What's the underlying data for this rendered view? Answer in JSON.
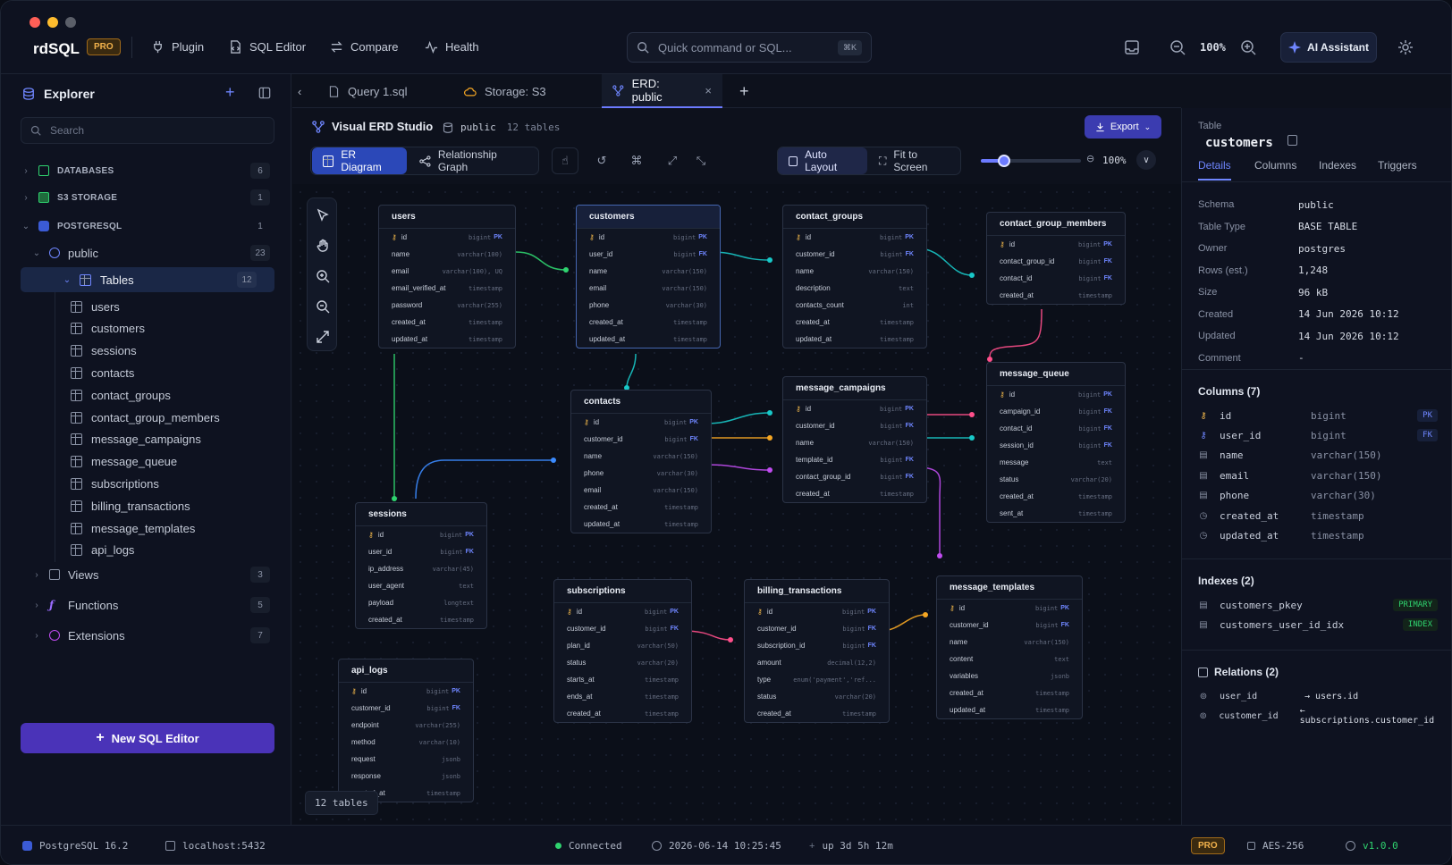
{
  "app": {
    "name": "rdSQL",
    "badge": "PRO"
  },
  "nav": {
    "plugin": "Plugin",
    "sql_editor": "SQL Editor",
    "compare": "Compare",
    "health": "Health"
  },
  "search": {
    "placeholder": "Quick command or SQL...",
    "shortcut": "⌘K"
  },
  "topright": {
    "zoom": "100%",
    "ai_assistant": "AI Assistant"
  },
  "sidebar": {
    "title": "Explorer",
    "search_placeholder": "Search",
    "groups": [
      {
        "label": "DATABASES",
        "count": "6"
      },
      {
        "label": "S3 STORAGE",
        "count": "1"
      },
      {
        "label": "POSTGRESQL",
        "count": "1"
      }
    ],
    "schema": {
      "label": "public",
      "count": "23"
    },
    "tables_node": {
      "label": "Tables",
      "count": "12"
    },
    "tables": [
      "users",
      "customers",
      "sessions",
      "contacts",
      "contact_groups",
      "contact_group_members",
      "message_campaigns",
      "message_queue",
      "subscriptions",
      "billing_transactions",
      "message_templates",
      "api_logs"
    ],
    "others": [
      {
        "label": "Views",
        "count": "3"
      },
      {
        "label": "Functions",
        "count": "5"
      },
      {
        "label": "Extensions",
        "count": "7"
      }
    ],
    "new_sql": "New SQL Editor"
  },
  "tabs": [
    {
      "label": "Query 1.sql"
    },
    {
      "label": "Storage: S3"
    },
    {
      "label": "ERD: public",
      "active": true
    }
  ],
  "toolbar": {
    "studio": "Visual ERD Studio",
    "schema": "public",
    "tables": "12 tables",
    "export": "Export",
    "er_diagram": "ER Diagram",
    "relationship_graph": "Relationship Graph",
    "auto_layout": "Auto Layout",
    "fit_to_screen": "Fit to Screen",
    "zoom": "100%",
    "zoom_level": 0.23
  },
  "erd": {
    "tables_badge": "12 tables",
    "cards": {
      "users": {
        "title": "users",
        "rows": [
          [
            "id",
            "bigint",
            "PK"
          ],
          [
            "name",
            "varchar(100)",
            ""
          ],
          [
            "email",
            "varchar(100), UQ",
            ""
          ],
          [
            "email_verified_at",
            "timestamp",
            ""
          ],
          [
            "password",
            "varchar(255)",
            ""
          ],
          [
            "created_at",
            "timestamp",
            ""
          ],
          [
            "updated_at",
            "timestamp",
            ""
          ]
        ]
      },
      "customers": {
        "title": "customers",
        "rows": [
          [
            "id",
            "bigint",
            "PK"
          ],
          [
            "user_id",
            "bigint",
            "FK"
          ],
          [
            "name",
            "varchar(150)",
            ""
          ],
          [
            "email",
            "varchar(150)",
            ""
          ],
          [
            "phone",
            "varchar(30)",
            ""
          ],
          [
            "created_at",
            "timestamp",
            ""
          ],
          [
            "updated_at",
            "timestamp",
            ""
          ]
        ]
      },
      "contact_groups": {
        "title": "contact_groups",
        "rows": [
          [
            "id",
            "bigint",
            "PK"
          ],
          [
            "customer_id",
            "bigint",
            "FK"
          ],
          [
            "name",
            "varchar(150)",
            ""
          ],
          [
            "description",
            "text",
            ""
          ],
          [
            "contacts_count",
            "int",
            ""
          ],
          [
            "created_at",
            "timestamp",
            ""
          ],
          [
            "updated_at",
            "timestamp",
            ""
          ]
        ]
      },
      "contact_group_members": {
        "title": "contact_group_members",
        "rows": [
          [
            "id",
            "bigint",
            "PK"
          ],
          [
            "contact_group_id",
            "bigint",
            "FK"
          ],
          [
            "contact_id",
            "bigint",
            "FK"
          ],
          [
            "created_at",
            "timestamp",
            ""
          ]
        ]
      },
      "contacts": {
        "title": "contacts",
        "rows": [
          [
            "id",
            "bigint",
            "PK"
          ],
          [
            "customer_id",
            "bigint",
            "FK"
          ],
          [
            "name",
            "varchar(150)",
            ""
          ],
          [
            "phone",
            "varchar(30)",
            ""
          ],
          [
            "email",
            "varchar(150)",
            ""
          ],
          [
            "created_at",
            "timestamp",
            ""
          ],
          [
            "updated_at",
            "timestamp",
            ""
          ]
        ]
      },
      "message_campaigns": {
        "title": "message_campaigns",
        "rows": [
          [
            "id",
            "bigint",
            "PK"
          ],
          [
            "customer_id",
            "bigint",
            "FK"
          ],
          [
            "name",
            "varchar(150)",
            ""
          ],
          [
            "template_id",
            "bigint",
            "FK"
          ],
          [
            "contact_group_id",
            "bigint",
            "FK"
          ],
          [
            "created_at",
            "timestamp",
            ""
          ]
        ]
      },
      "message_queue": {
        "title": "message_queue",
        "rows": [
          [
            "id",
            "bigint",
            "PK"
          ],
          [
            "campaign_id",
            "bigint",
            "FK"
          ],
          [
            "contact_id",
            "bigint",
            "FK"
          ],
          [
            "session_id",
            "bigint",
            "FK"
          ],
          [
            "message",
            "text",
            ""
          ],
          [
            "status",
            "varchar(20)",
            ""
          ],
          [
            "created_at",
            "timestamp",
            ""
          ],
          [
            "sent_at",
            "timestamp",
            ""
          ]
        ]
      },
      "sessions": {
        "title": "sessions",
        "rows": [
          [
            "id",
            "bigint",
            "PK"
          ],
          [
            "user_id",
            "bigint",
            "FK"
          ],
          [
            "ip_address",
            "varchar(45)",
            ""
          ],
          [
            "user_agent",
            "text",
            ""
          ],
          [
            "payload",
            "longtext",
            ""
          ],
          [
            "created_at",
            "timestamp",
            ""
          ]
        ]
      },
      "subscriptions": {
        "title": "subscriptions",
        "rows": [
          [
            "id",
            "bigint",
            "PK"
          ],
          [
            "customer_id",
            "bigint",
            "FK"
          ],
          [
            "plan_id",
            "varchar(50)",
            ""
          ],
          [
            "status",
            "varchar(20)",
            ""
          ],
          [
            "starts_at",
            "timestamp",
            ""
          ],
          [
            "ends_at",
            "timestamp",
            ""
          ],
          [
            "created_at",
            "timestamp",
            ""
          ]
        ]
      },
      "billing_transactions": {
        "title": "billing_transactions",
        "rows": [
          [
            "id",
            "bigint",
            "PK"
          ],
          [
            "customer_id",
            "bigint",
            "FK"
          ],
          [
            "subscription_id",
            "bigint",
            "FK"
          ],
          [
            "amount",
            "decimal(12,2)",
            ""
          ],
          [
            "type",
            "enum('payment','ref...",
            ""
          ],
          [
            "status",
            "varchar(20)",
            ""
          ],
          [
            "created_at",
            "timestamp",
            ""
          ]
        ]
      },
      "message_templates": {
        "title": "message_templates",
        "rows": [
          [
            "id",
            "bigint",
            "PK"
          ],
          [
            "customer_id",
            "bigint",
            "FK"
          ],
          [
            "name",
            "varchar(150)",
            ""
          ],
          [
            "content",
            "text",
            ""
          ],
          [
            "variables",
            "jsonb",
            ""
          ],
          [
            "created_at",
            "timestamp",
            ""
          ],
          [
            "updated_at",
            "timestamp",
            ""
          ]
        ]
      },
      "api_logs": {
        "title": "api_logs",
        "rows": [
          [
            "id",
            "bigint",
            "PK"
          ],
          [
            "customer_id",
            "bigint",
            "FK"
          ],
          [
            "endpoint",
            "varchar(255)",
            ""
          ],
          [
            "method",
            "varchar(10)",
            ""
          ],
          [
            "request",
            "jsonb",
            ""
          ],
          [
            "response",
            "jsonb",
            ""
          ],
          [
            "created_at",
            "timestamp",
            ""
          ]
        ]
      }
    }
  },
  "details": {
    "label": "Table",
    "table": "customers",
    "tabs": [
      "Details",
      "Columns",
      "Indexes",
      "Triggers"
    ],
    "props": [
      [
        "Schema",
        "public"
      ],
      [
        "Table Type",
        "BASE TABLE"
      ],
      [
        "Owner",
        "postgres"
      ],
      [
        "Rows (est.)",
        "1,248"
      ],
      [
        "Size",
        "96 kB"
      ],
      [
        "Created",
        "14 Jun 2026 10:12"
      ],
      [
        "Updated",
        "14 Jun 2026 10:12"
      ],
      [
        "Comment",
        "-"
      ]
    ],
    "columns_title": "Columns (7)",
    "columns": [
      [
        "id",
        "bigint",
        "PK"
      ],
      [
        "user_id",
        "bigint",
        "FK"
      ],
      [
        "name",
        "varchar(150)",
        ""
      ],
      [
        "email",
        "varchar(150)",
        ""
      ],
      [
        "phone",
        "varchar(30)",
        ""
      ],
      [
        "created_at",
        "timestamp",
        ""
      ],
      [
        "updated_at",
        "timestamp",
        ""
      ]
    ],
    "indexes_title": "Indexes (2)",
    "indexes": [
      [
        "customers_pkey",
        "PRIMARY"
      ],
      [
        "customers_user_id_idx",
        "INDEX"
      ]
    ],
    "relations_title": "Relations (2)",
    "relations": [
      [
        "user_id",
        "→ users.id"
      ],
      [
        "customer_id",
        "← subscriptions.customer_id"
      ]
    ]
  },
  "status": {
    "db": "PostgreSQL 16.2",
    "host": "localhost:5432",
    "connected": "Connected",
    "time": "2026-06-14 10:25:45",
    "uptime": "up 3d 5h 12m",
    "badge": "PRO",
    "enc": "AES-256",
    "version": "v1.0.0"
  },
  "colors": {
    "accent": "#6c7bff",
    "button": "#4a33b8",
    "pk": "#f0b64a",
    "green": "#2fd36f",
    "cyan": "#18c8c8",
    "blue": "#3b8bff",
    "orange": "#f5a623",
    "pink": "#ff4f8b",
    "purple": "#c04cf0"
  }
}
